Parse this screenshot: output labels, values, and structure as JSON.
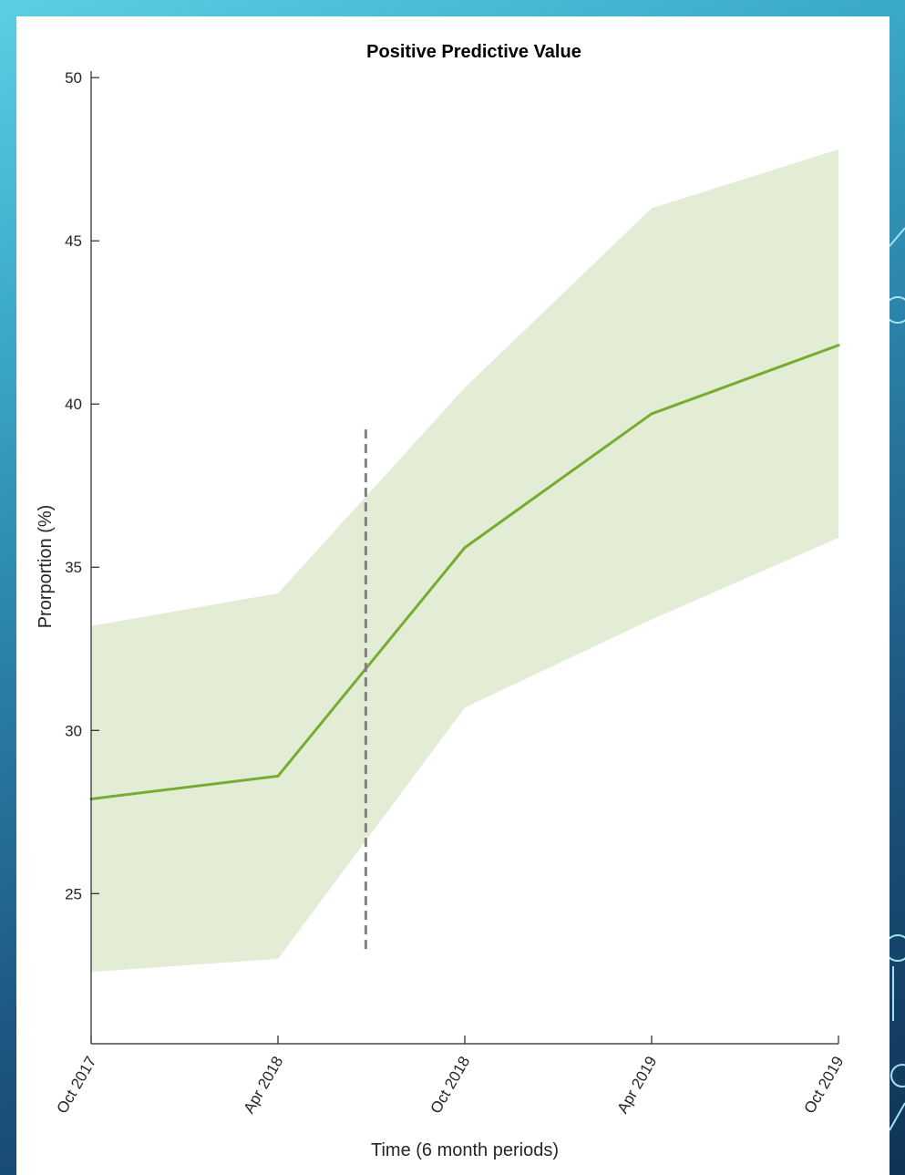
{
  "chart_data": {
    "type": "line",
    "title": "Positive Predictive Value",
    "xlabel": "Time (6 month periods)",
    "ylabel": "Prorportion (%)",
    "categories": [
      "Oct 2017",
      "Apr 2018",
      "Oct 2018",
      "Apr 2019",
      "Oct 2019"
    ],
    "yticks": [
      25,
      30,
      35,
      40,
      45,
      50
    ],
    "ylim": [
      20.4,
      50.2
    ],
    "grid": false,
    "series": [
      {
        "values": [
          27.9,
          28.6,
          35.6,
          39.7,
          41.8
        ],
        "ci_lower": [
          22.6,
          23.0,
          30.7,
          33.4,
          35.9
        ],
        "ci_upper": [
          33.2,
          34.2,
          40.5,
          46.0,
          47.8
        ],
        "color": "#77ac30",
        "ci_color": "#e3edd6"
      }
    ],
    "reference_line": {
      "x": 1.47,
      "y_range": [
        23.3,
        39.3
      ],
      "style": "dashed",
      "color": "#7f7f7f"
    }
  }
}
